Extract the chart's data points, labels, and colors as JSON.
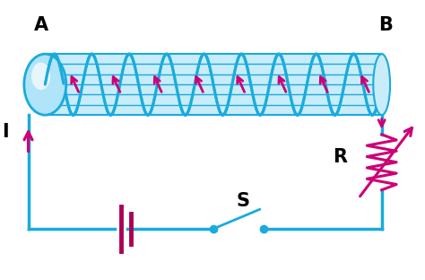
{
  "bg_color": "#ffffff",
  "solenoid_color": "#1aabdd",
  "solenoid_fill": "#c8ecf8",
  "cap_fill": "#b0e4f8",
  "arrow_color": "#cc0077",
  "circuit_color": "#1aabdd",
  "battery_color": "#aa0055",
  "resistor_color": "#cc0077",
  "switch_color": "#1aabdd",
  "label_color": "#000000",
  "label_A": "A",
  "label_B": "B",
  "label_I": "I",
  "label_R": "R",
  "label_S": "S",
  "sx0": 0.1,
  "sx1": 0.9,
  "sy": 0.7,
  "sh": 0.22,
  "num_coils": 9,
  "figsize": [
    4.74,
    3.12
  ],
  "dpi": 100
}
